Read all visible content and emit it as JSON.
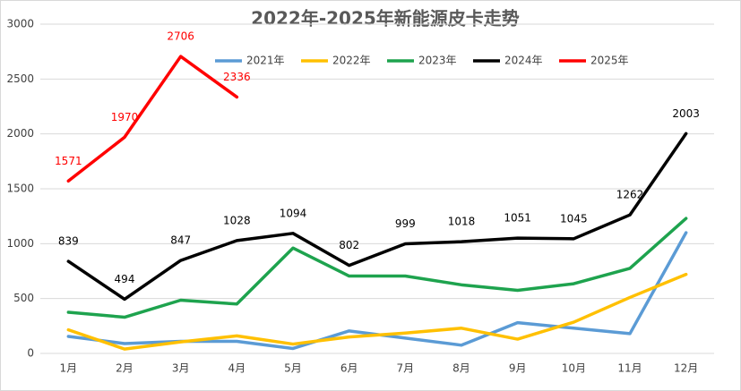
{
  "chart_data": {
    "type": "line",
    "title": "2022年-2025年新能源皮卡走势",
    "categories": [
      "1月",
      "2月",
      "3月",
      "4月",
      "5月",
      "6月",
      "7月",
      "8月",
      "9月",
      "10月",
      "11月",
      "12月"
    ],
    "ylim": [
      0,
      3000
    ],
    "yticks": [
      0,
      500,
      1000,
      1500,
      2000,
      2500,
      3000
    ],
    "grid": true,
    "series": [
      {
        "name": "2021年",
        "color": "#5b9bd5",
        "values": [
          155,
          90,
          110,
          110,
          45,
          205,
          140,
          75,
          280,
          230,
          180,
          1100
        ]
      },
      {
        "name": "2022年",
        "color": "#ffc000",
        "values": [
          215,
          40,
          105,
          160,
          85,
          150,
          185,
          230,
          130,
          285,
          510,
          720
        ]
      },
      {
        "name": "2023年",
        "color": "#1ea34e",
        "values": [
          375,
          330,
          485,
          450,
          960,
          705,
          705,
          625,
          575,
          635,
          775,
          1230
        ]
      },
      {
        "name": "2024年",
        "color": "#000000",
        "data_labels": true,
        "values": [
          839,
          494,
          847,
          1028,
          1094,
          802,
          999,
          1018,
          1051,
          1045,
          1262,
          2003
        ]
      },
      {
        "name": "2025年",
        "color": "#ff0000",
        "data_labels": true,
        "values": [
          1571,
          1970,
          2706,
          2336,
          null,
          null,
          null,
          null,
          null,
          null,
          null,
          null
        ]
      }
    ]
  }
}
